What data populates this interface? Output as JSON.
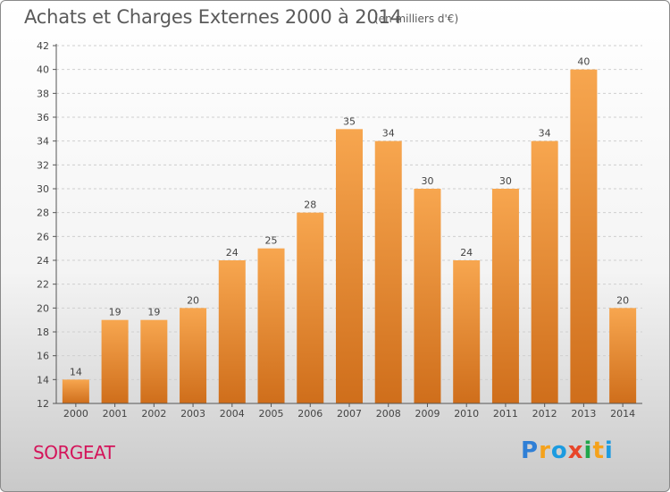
{
  "title": "Achats et Charges Externes 2000 à 2014",
  "unit": "(en milliers d'€)",
  "commune": "SORGEAT",
  "logo": {
    "letters": [
      "P",
      "r",
      "o",
      "x",
      "i",
      "t",
      "i"
    ],
    "colors": [
      "#2f7fd6",
      "#f5a21b",
      "#1c9be0",
      "#e8462a",
      "#1fa64a",
      "#f5a21b",
      "#1c9be0"
    ]
  },
  "colors": {
    "bar_top": "#f7a64f",
    "bar_bottom": "#cf6e1b",
    "axis": "#555555",
    "grid": "#cfcfcf",
    "text": "#444444"
  },
  "chart_data": {
    "type": "bar",
    "title": "Achats et Charges Externes 2000 à 2014",
    "subtitle": "(en milliers d'€)",
    "categories": [
      "2000",
      "2001",
      "2002",
      "2003",
      "2004",
      "2005",
      "2006",
      "2007",
      "2008",
      "2009",
      "2010",
      "2011",
      "2012",
      "2013",
      "2014"
    ],
    "values": [
      14,
      19,
      19,
      20,
      24,
      25,
      28,
      35,
      34,
      30,
      24,
      30,
      34,
      40,
      20
    ],
    "ylim": [
      12,
      42
    ],
    "yticks": [
      12,
      14,
      16,
      18,
      20,
      22,
      24,
      26,
      28,
      30,
      32,
      34,
      36,
      38,
      40,
      42
    ],
    "grid": true,
    "legend": "none"
  }
}
